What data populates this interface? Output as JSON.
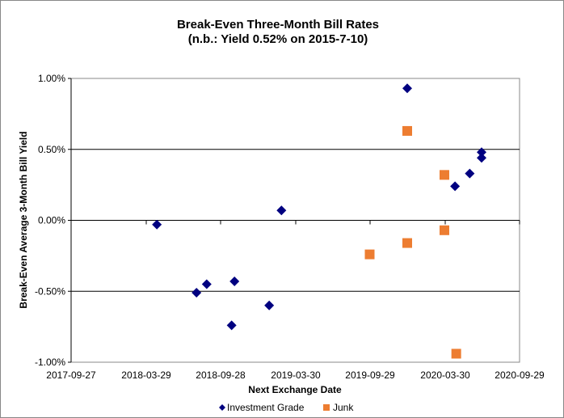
{
  "chart_data": {
    "type": "scatter",
    "title": "Break-Even Three-Month Bill Rates",
    "subtitle": "(n.b.: Yield 0.52% on 2015-7-10)",
    "xlabel": "Next Exchange Date",
    "ylabel": "Break-Even Average 3-Month  Bill Yield",
    "xlim": [
      "2017-09-27",
      "2020-09-29"
    ],
    "ylim": [
      -1.0,
      1.0
    ],
    "x_ticks": [
      "2017-09-27",
      "2018-03-29",
      "2018-09-28",
      "2019-03-30",
      "2019-09-29",
      "2020-03-30",
      "2020-09-29"
    ],
    "y_ticks": [
      1.0,
      0.5,
      0.0,
      -0.5,
      -1.0
    ],
    "y_tick_labels": [
      "1.00%",
      "0.50%",
      "0.00%",
      "-0.50%",
      "-1.00%"
    ],
    "grid": "horizontal",
    "legend_position": "bottom",
    "series": [
      {
        "name": "Investment Grade",
        "marker": "diamond",
        "color": "#000080",
        "points": [
          {
            "x": "2018-04-25",
            "y": -0.03
          },
          {
            "x": "2018-07-31",
            "y": -0.51
          },
          {
            "x": "2018-08-25",
            "y": -0.45
          },
          {
            "x": "2018-11-01",
            "y": -0.43
          },
          {
            "x": "2018-10-25",
            "y": -0.74
          },
          {
            "x": "2019-01-25",
            "y": -0.6
          },
          {
            "x": "2019-02-24",
            "y": 0.07
          },
          {
            "x": "2019-12-29",
            "y": 0.93
          },
          {
            "x": "2020-04-24",
            "y": 0.24
          },
          {
            "x": "2020-05-30",
            "y": 0.33
          },
          {
            "x": "2020-06-28",
            "y": 0.48
          },
          {
            "x": "2020-06-28",
            "y": 0.44
          }
        ]
      },
      {
        "name": "Junk",
        "marker": "square",
        "color": "#ED7D31",
        "points": [
          {
            "x": "2019-12-29",
            "y": 0.63
          },
          {
            "x": "2020-03-29",
            "y": 0.32
          },
          {
            "x": "2020-03-29",
            "y": -0.07
          },
          {
            "x": "2019-12-29",
            "y": -0.16
          },
          {
            "x": "2019-09-28",
            "y": -0.24
          },
          {
            "x": "2020-04-27",
            "y": -0.94
          }
        ]
      }
    ]
  }
}
